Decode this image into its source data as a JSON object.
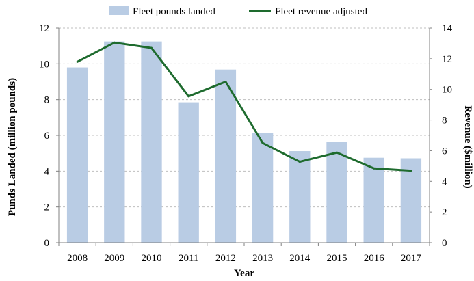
{
  "chart_data": {
    "type": "bar",
    "categories": [
      "2008",
      "2009",
      "2010",
      "2011",
      "2012",
      "2013",
      "2014",
      "2015",
      "2016",
      "2017"
    ],
    "series": [
      {
        "name": "Fleet pounds landed",
        "type": "bar",
        "axis": "left",
        "color": "#b9cce4",
        "values": [
          9.8,
          11.25,
          11.25,
          7.85,
          9.68,
          6.12,
          5.12,
          5.62,
          4.75,
          4.72
        ]
      },
      {
        "name": "Fleet revenue adjusted",
        "type": "line",
        "axis": "right",
        "color": "#1e6b2e",
        "values": [
          11.8,
          13.05,
          12.7,
          9.55,
          10.5,
          6.5,
          5.28,
          5.88,
          4.85,
          4.7
        ]
      }
    ],
    "xlabel": "Year",
    "ylabel": "Punds Landed (million pounds)",
    "y2label": "Revenue ($million)",
    "ylim": [
      0,
      12
    ],
    "y2lim": [
      0,
      14
    ],
    "yticks": [
      "0",
      "2",
      "4",
      "6",
      "8",
      "10",
      "12"
    ],
    "y2ticks": [
      "0",
      "2",
      "4",
      "6",
      "8",
      "10",
      "12",
      "14"
    ],
    "grid": true,
    "legend_position": "top"
  }
}
